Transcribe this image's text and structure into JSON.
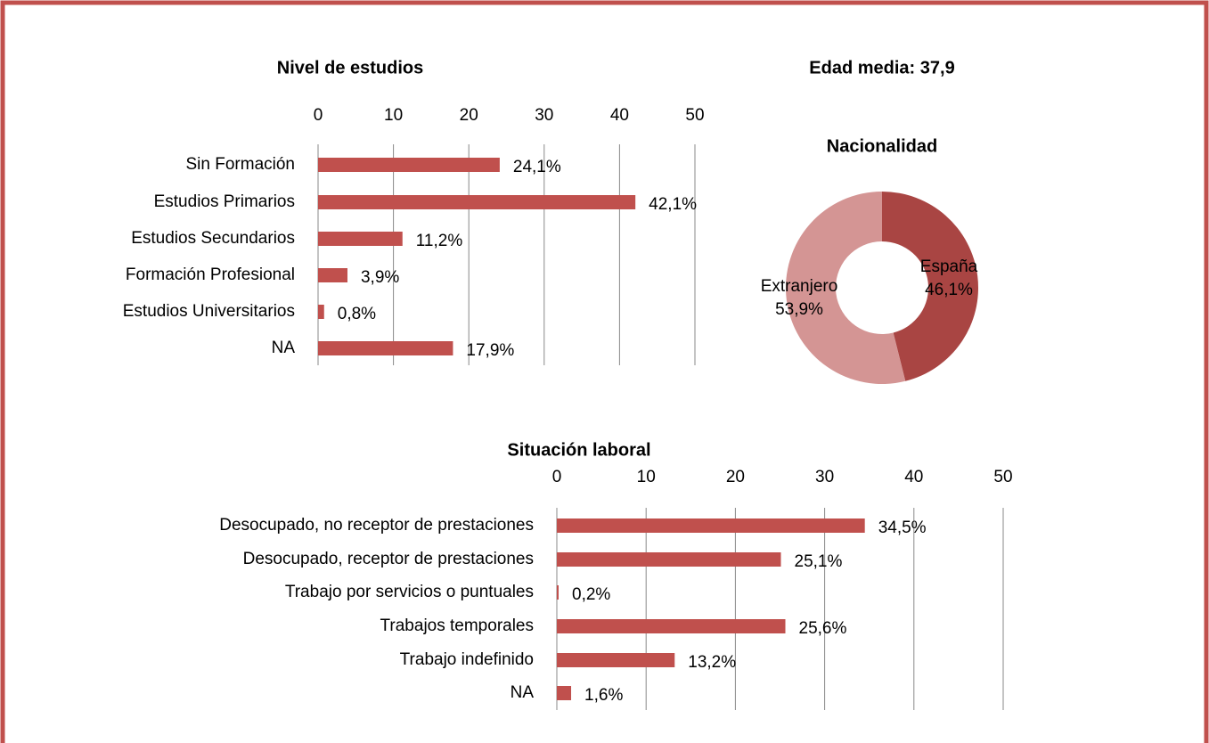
{
  "headline": "Edad media: 37,9",
  "chart_data": [
    {
      "type": "hbar",
      "title": "Nivel de estudios",
      "categories": [
        "Sin Formación",
        "Estudios Primarios",
        "Estudios Secundarios",
        "Formación Profesional",
        "Estudios Universitarios",
        "NA"
      ],
      "values": [
        24.1,
        42.1,
        11.2,
        3.9,
        0.8,
        17.9
      ],
      "value_labels": [
        "24,1%",
        "42,1%",
        "11,2%",
        "3,9%",
        "0,8%",
        "17,9%"
      ],
      "color": "#c0504d",
      "xlim": [
        0,
        50
      ],
      "xticks": [
        0,
        10,
        20,
        30,
        40,
        50
      ],
      "grid": true
    },
    {
      "type": "donut",
      "title": "Nacionalidad",
      "categories": [
        "España",
        "Extranjero"
      ],
      "values": [
        46.1,
        53.9
      ],
      "value_labels": [
        "46,1%",
        "53,9%"
      ],
      "colors": [
        "#a94543",
        "#d49594"
      ]
    },
    {
      "type": "hbar",
      "title": "Situación laboral",
      "categories": [
        "Desocupado, no receptor de prestaciones",
        "Desocupado, receptor de prestaciones",
        "Trabajo por servicios o puntuales",
        "Trabajos temporales",
        "Trabajo indefinido",
        "NA"
      ],
      "values": [
        34.5,
        25.1,
        0.2,
        25.6,
        13.2,
        1.6
      ],
      "value_labels": [
        "34,5%",
        "25,1%",
        "0,2%",
        "25,6%",
        "13,2%",
        "1,6%"
      ],
      "color": "#c0504d",
      "xlim": [
        0,
        50
      ],
      "xticks": [
        0,
        10,
        20,
        30,
        40,
        50
      ],
      "grid": true
    }
  ]
}
